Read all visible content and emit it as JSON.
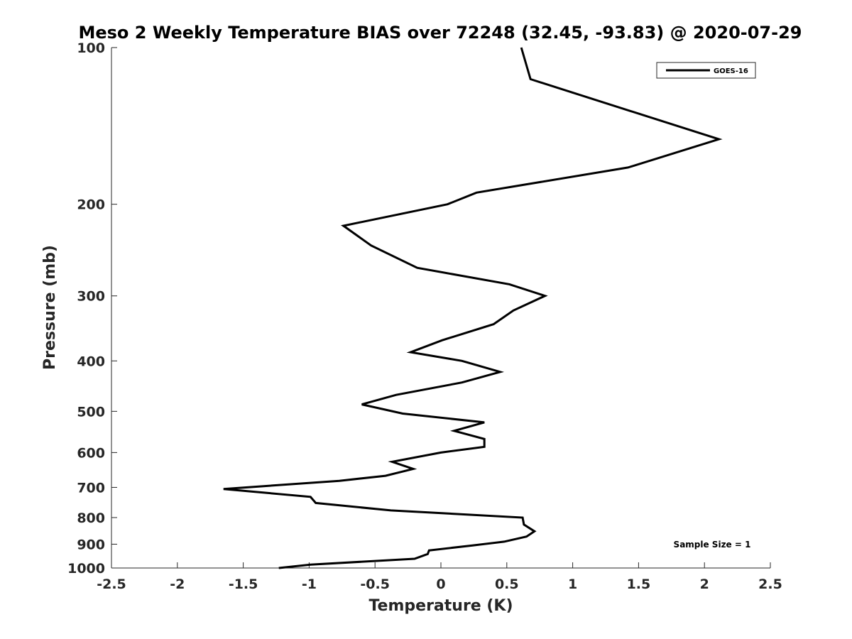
{
  "chart_data": {
    "type": "line",
    "title": "Meso 2 Weekly Temperature BIAS over 72248 (32.45, -93.83) @ 2020-07-29",
    "xlabel": "Temperature (K)",
    "ylabel": "Pressure (mb)",
    "xlim": [
      -2.5,
      2.5
    ],
    "ylim": [
      1000,
      100
    ],
    "y_scale": "log",
    "y_reversed": true,
    "x_ticks": [
      -2.5,
      -2,
      -1.5,
      -1,
      -0.5,
      0,
      0.5,
      1,
      1.5,
      2,
      2.5
    ],
    "x_tick_labels": [
      "-2.5",
      "-2",
      "-1.5",
      "-1",
      "-0.5",
      "0",
      "0.5",
      "1",
      "1.5",
      "2",
      "2.5"
    ],
    "y_ticks": [
      100,
      200,
      300,
      400,
      500,
      600,
      700,
      800,
      900,
      1000
    ],
    "y_tick_labels": [
      "100",
      "200",
      "300",
      "400",
      "500",
      "600",
      "700",
      "800",
      "900",
      "1000"
    ],
    "grid": false,
    "legend_position": "top-right",
    "line_color": "#000000",
    "series": [
      {
        "name": "GOES-16",
        "x": [
          0.61,
          0.68,
          2.11,
          1.42,
          0.27,
          0.05,
          -0.74,
          -0.53,
          -0.18,
          0.52,
          0.79,
          0.55,
          0.4,
          0.01,
          -0.23,
          0.16,
          0.45,
          0.16,
          -0.34,
          -0.6,
          -0.29,
          0.33,
          0.1,
          0.33,
          0.33,
          0.0,
          -0.37,
          -0.21,
          -0.42,
          -0.77,
          -1.65,
          -0.99,
          -0.95,
          -0.38,
          0.62,
          0.63,
          0.71,
          0.65,
          0.48,
          0.24,
          -0.09,
          -0.1,
          -0.2,
          -0.99,
          -1.23
        ],
        "y": [
          100,
          115,
          150,
          170,
          190,
          200,
          220,
          240,
          265,
          285,
          300,
          320,
          340,
          365,
          385,
          400,
          420,
          440,
          465,
          485,
          505,
          525,
          545,
          565,
          585,
          600,
          625,
          645,
          665,
          680,
          705,
          730,
          750,
          775,
          800,
          825,
          850,
          870,
          890,
          905,
          925,
          940,
          960,
          985,
          1000
        ]
      }
    ],
    "annotation": "Sample Size = 1"
  }
}
